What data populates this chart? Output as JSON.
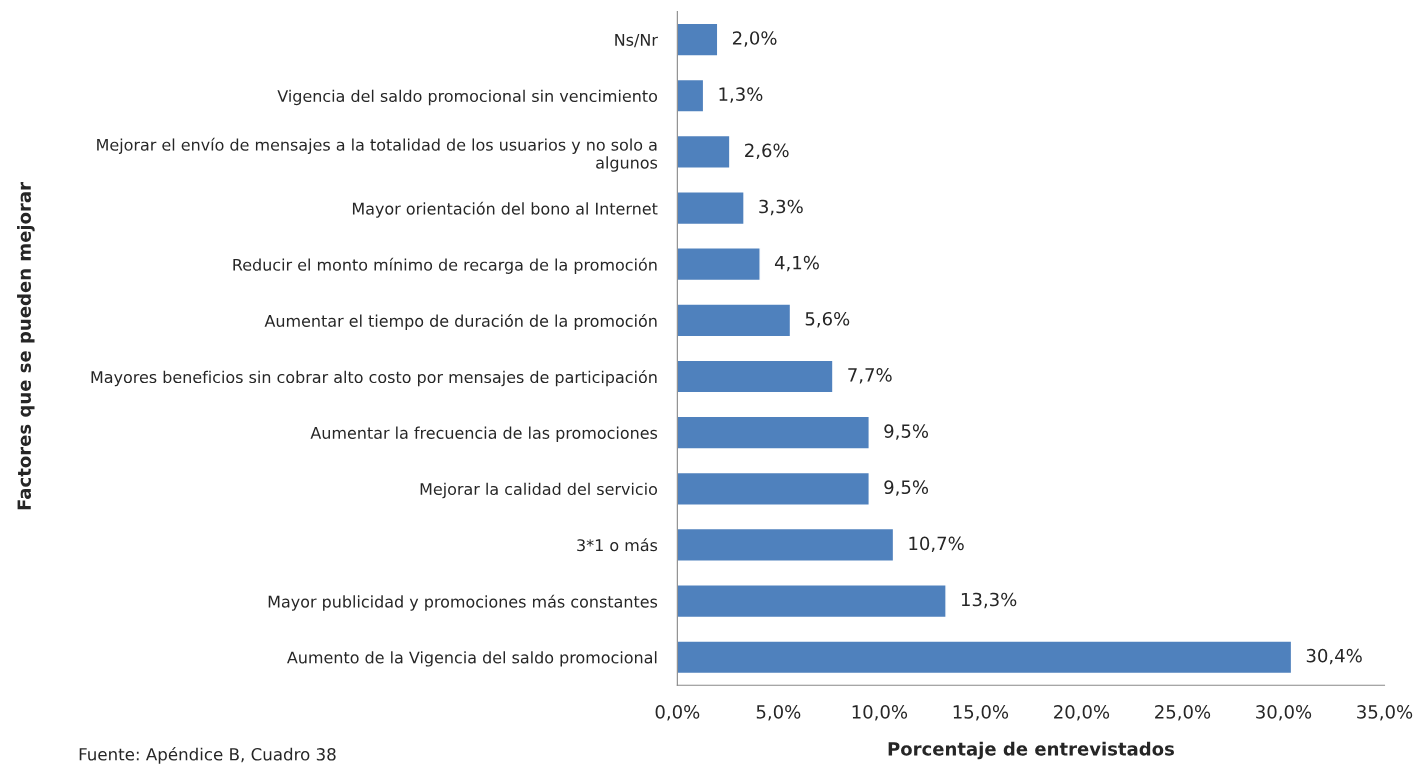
{
  "chart_data": {
    "type": "bar",
    "orientation": "horizontal",
    "xlabel": "Porcentaje de entrevistados",
    "ylabel": "Factores que se pueden mejorar",
    "categories": [
      "Ns/Nr",
      "Vigencia del saldo promocional sin vencimiento",
      "Mejorar el envío de mensajes a la totalidad de los usuarios y no solo a\nalgunos",
      "Mayor orientación del bono al Internet",
      "Reducir el monto mínimo de recarga de la promoción",
      "Aumentar el tiempo de duración de la promoción",
      "Mayores beneficios sin cobrar alto costo por mensajes de participación",
      "Aumentar la frecuencia de las promociones",
      "Mejorar la calidad del servicio",
      "3*1 o más",
      "Mayor publicidad y promociones más constantes",
      "Aumento de la Vigencia del saldo promocional"
    ],
    "values": [
      2.0,
      1.3,
      2.6,
      3.3,
      4.1,
      5.6,
      7.7,
      9.5,
      9.5,
      10.7,
      13.3,
      30.4
    ],
    "value_labels": [
      "2,0%",
      "1,3%",
      "2,6%",
      "3,3%",
      "4,1%",
      "5,6%",
      "7,7%",
      "9,5%",
      "9,5%",
      "10,7%",
      "13,3%",
      "30,4%"
    ],
    "color": "#4f81bd",
    "xlim": [
      0,
      35
    ],
    "xticks": [
      {
        "value": 0,
        "label": "0,0%"
      },
      {
        "value": 5,
        "label": "5,0%"
      },
      {
        "value": 10,
        "label": "10,0%"
      },
      {
        "value": 15,
        "label": "15,0%"
      },
      {
        "value": 20,
        "label": "20,0%"
      },
      {
        "value": 25,
        "label": "25,0%"
      },
      {
        "value": 30,
        "label": "30,0%"
      },
      {
        "value": 35,
        "label": "35,0%"
      }
    ],
    "grid": false,
    "legend": false,
    "annotations": [
      "Fuente: Apéndice B, Cuadro 38"
    ]
  }
}
